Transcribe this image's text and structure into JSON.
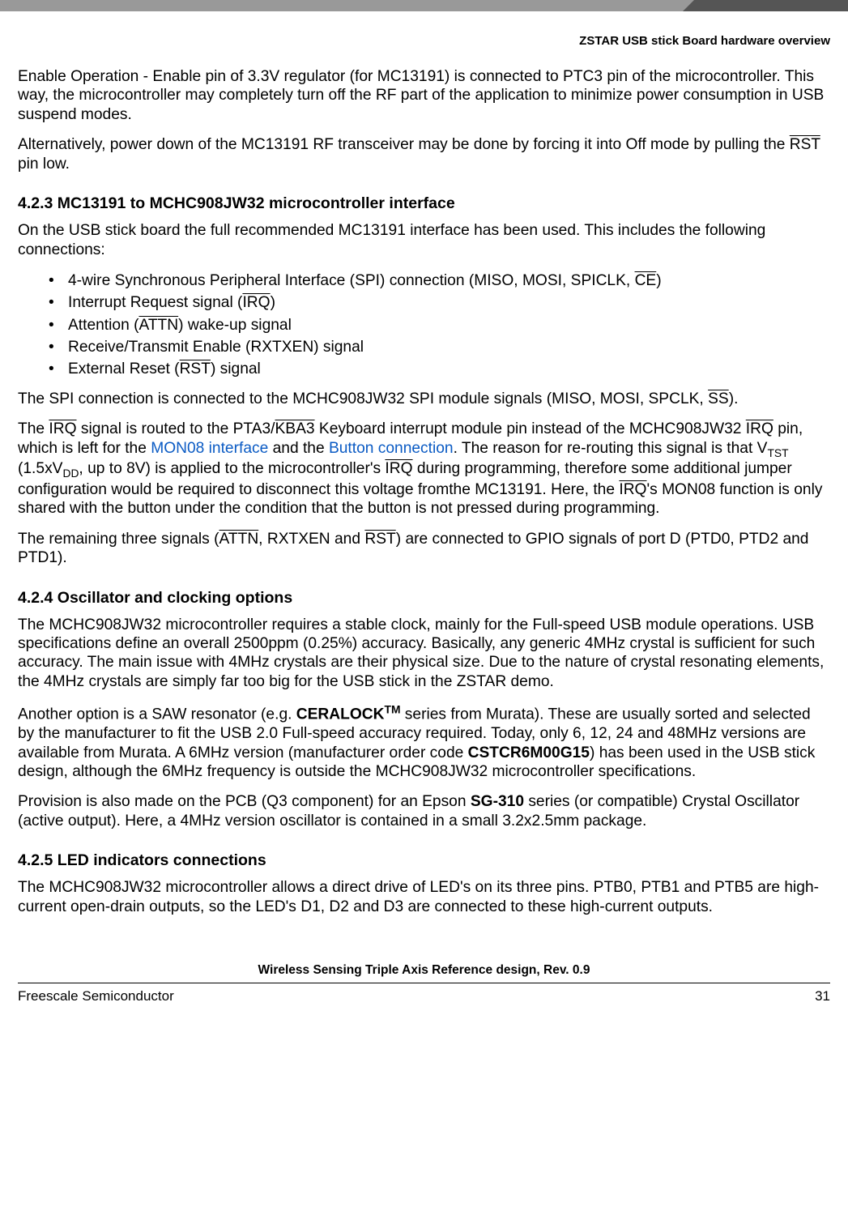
{
  "header": {
    "section_title": "ZSTAR USB stick Board hardware overview"
  },
  "body": {
    "p1a": "Enable Operation - Enable pin of 3.3V regulator (for MC13191) is connected to PTC3 pin of the microcontroller. This way, the microcontroller may completely turn off the RF part of the application to minimize power consumption in USB suspend modes.",
    "p2a": "Alternatively, power down of the MC13191 RF transceiver may be done by forcing it into Off mode by pulling the ",
    "p2_rst": "RST",
    "p2b": " pin low.",
    "h423": "4.2.3  MC13191 to MCHC908JW32 microcontroller interface",
    "p3": "On the USB stick board the full recommended MC13191 interface has been used. This includes the following connections:",
    "bul1a": "4-wire Synchronous Peripheral Interface (SPI) connection (MISO, MOSI, SPICLK, ",
    "bul1_ce": "CE",
    "bul1b": ")",
    "bul2a": "Interrupt Request signal (",
    "bul2_irq": "IRQ",
    "bul2b": ")",
    "bul3a": "Attention (",
    "bul3_attn": "ATTN",
    "bul3b": ") wake-up signal",
    "bul4": "Receive/Transmit Enable (RXTXEN) signal",
    "bul5a": "External Reset (",
    "bul5_rst": "RST",
    "bul5b": ") signal",
    "p4a": "The SPI connection is connected to the MCHC908JW32 SPI module signals (MISO, MOSI, SPCLK, ",
    "p4_ss": "SS",
    "p4b": ").",
    "p5a": "The ",
    "p5_irq1": "IRQ",
    "p5b": " signal is routed to the PTA3/",
    "p5_kba3": "KBA3",
    "p5c": " Keyboard interrupt module pin instead of the MCHC908JW32 ",
    "p5_irq2": "IRQ",
    "p5d": " pin, which is left for the ",
    "p5_link1": "MON08 interface",
    "p5e": " and the ",
    "p5_link2": "Button connection",
    "p5f": ". The reason for re-routing this signal is that V",
    "p5_tst": "TST",
    "p5g": " (1.5xV",
    "p5_dd": "DD",
    "p5h": ", up to 8V) is applied to the microcontroller's ",
    "p5_irq3": "IRQ",
    "p5i": " during programming, therefore some additional jumper configuration would be required to disconnect this voltage fromthe MC13191. Here, the ",
    "p5_irq4": "IRQ",
    "p5j": "'s MON08 function is only shared with the button under the condition that the button is not pressed during programming.",
    "p6a": "The remaining three signals (",
    "p6_attn": "ATTN",
    "p6b": ", RXTXEN and ",
    "p6_rst": "RST",
    "p6c": ") are connected to GPIO signals of port D (PTD0, PTD2 and PTD1).",
    "h424": "4.2.4  Oscillator and clocking options",
    "p7": "The MCHC908JW32 microcontroller requires a stable clock, mainly for the Full-speed USB module operations. USB specifications define an overall 2500ppm (0.25%) accuracy. Basically, any generic 4MHz crystal is sufficient for such accuracy. The main issue with 4MHz crystals are their physical size. Due to the nature of crystal resonating elements, the 4MHz crystals are simply far too big for the USB stick in the ZSTAR demo.",
    "p8a": "Another option is a SAW resonator (e.g. ",
    "p8_cer": "CERALOCK",
    "p8_tm": "TM",
    "p8b": " series from Murata). These are usually sorted and selected by the manufacturer to fit the USB 2.0 Full-speed accuracy required. Today, only 6, 12, 24 and 48MHz versions are available from Murata. A 6MHz version (manufacturer order code ",
    "p8_code": "CSTCR6M00G15",
    "p8c": ") has been used in the USB stick design, although the 6MHz frequency is outside the MCHC908JW32 microcontroller specifications.",
    "p9a": "Provision is also made on the PCB (Q3 component) for an Epson ",
    "p9_sg": "SG-310",
    "p9b": " series (or compatible) Crystal Oscillator (active output). Here, a 4MHz version oscillator is contained in a small 3.2x2.5mm package.",
    "h425": "4.2.5  LED indicators connections",
    "p10": "The MCHC908JW32 microcontroller allows a direct drive of LED's on its three pins. PTB0, PTB1 and PTB5 are high-current open-drain outputs, so the LED's D1, D2 and D3 are connected to these high-current outputs."
  },
  "footer": {
    "doc_title": "Wireless Sensing Triple Axis Reference design, Rev. 0.9",
    "company": "Freescale Semiconductor",
    "page": "31"
  }
}
